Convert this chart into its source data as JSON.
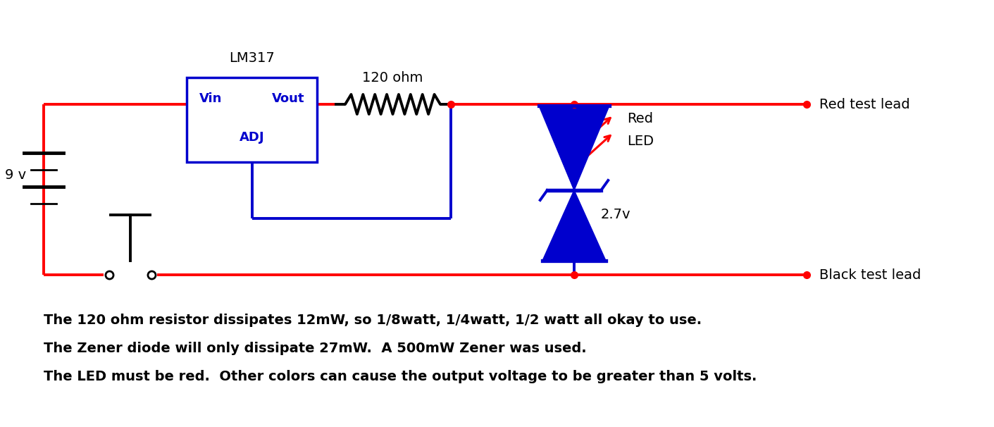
{
  "bg_color": "#ffffff",
  "line_color_red": "#ff0000",
  "line_color_blue": "#0000cd",
  "line_color_black": "#000000",
  "line_width": 2.8,
  "text_lines": [
    "The 120 ohm resistor dissipates 12mW, so 1/8watt, 1/4watt, 1/2 watt all okay to use.",
    "The Zener diode will only dissipate 27mW.  A 500mW Zener was used.",
    "The LED must be red.  Other colors can cause the output voltage to be greater than 5 volts."
  ],
  "lm317_label": "LM317",
  "lm317_vin": "Vin",
  "lm317_vout": "Vout",
  "lm317_adj": "ADJ",
  "resistor_label": "120 ohm",
  "zener_label": "2.7v",
  "led_label1": "Red",
  "led_label2": "LED",
  "battery_label": "9 v",
  "red_lead_label": "Red test lead",
  "black_lead_label": "Black test lead",
  "figsize": [
    14.11,
    6.06
  ],
  "dpi": 100
}
